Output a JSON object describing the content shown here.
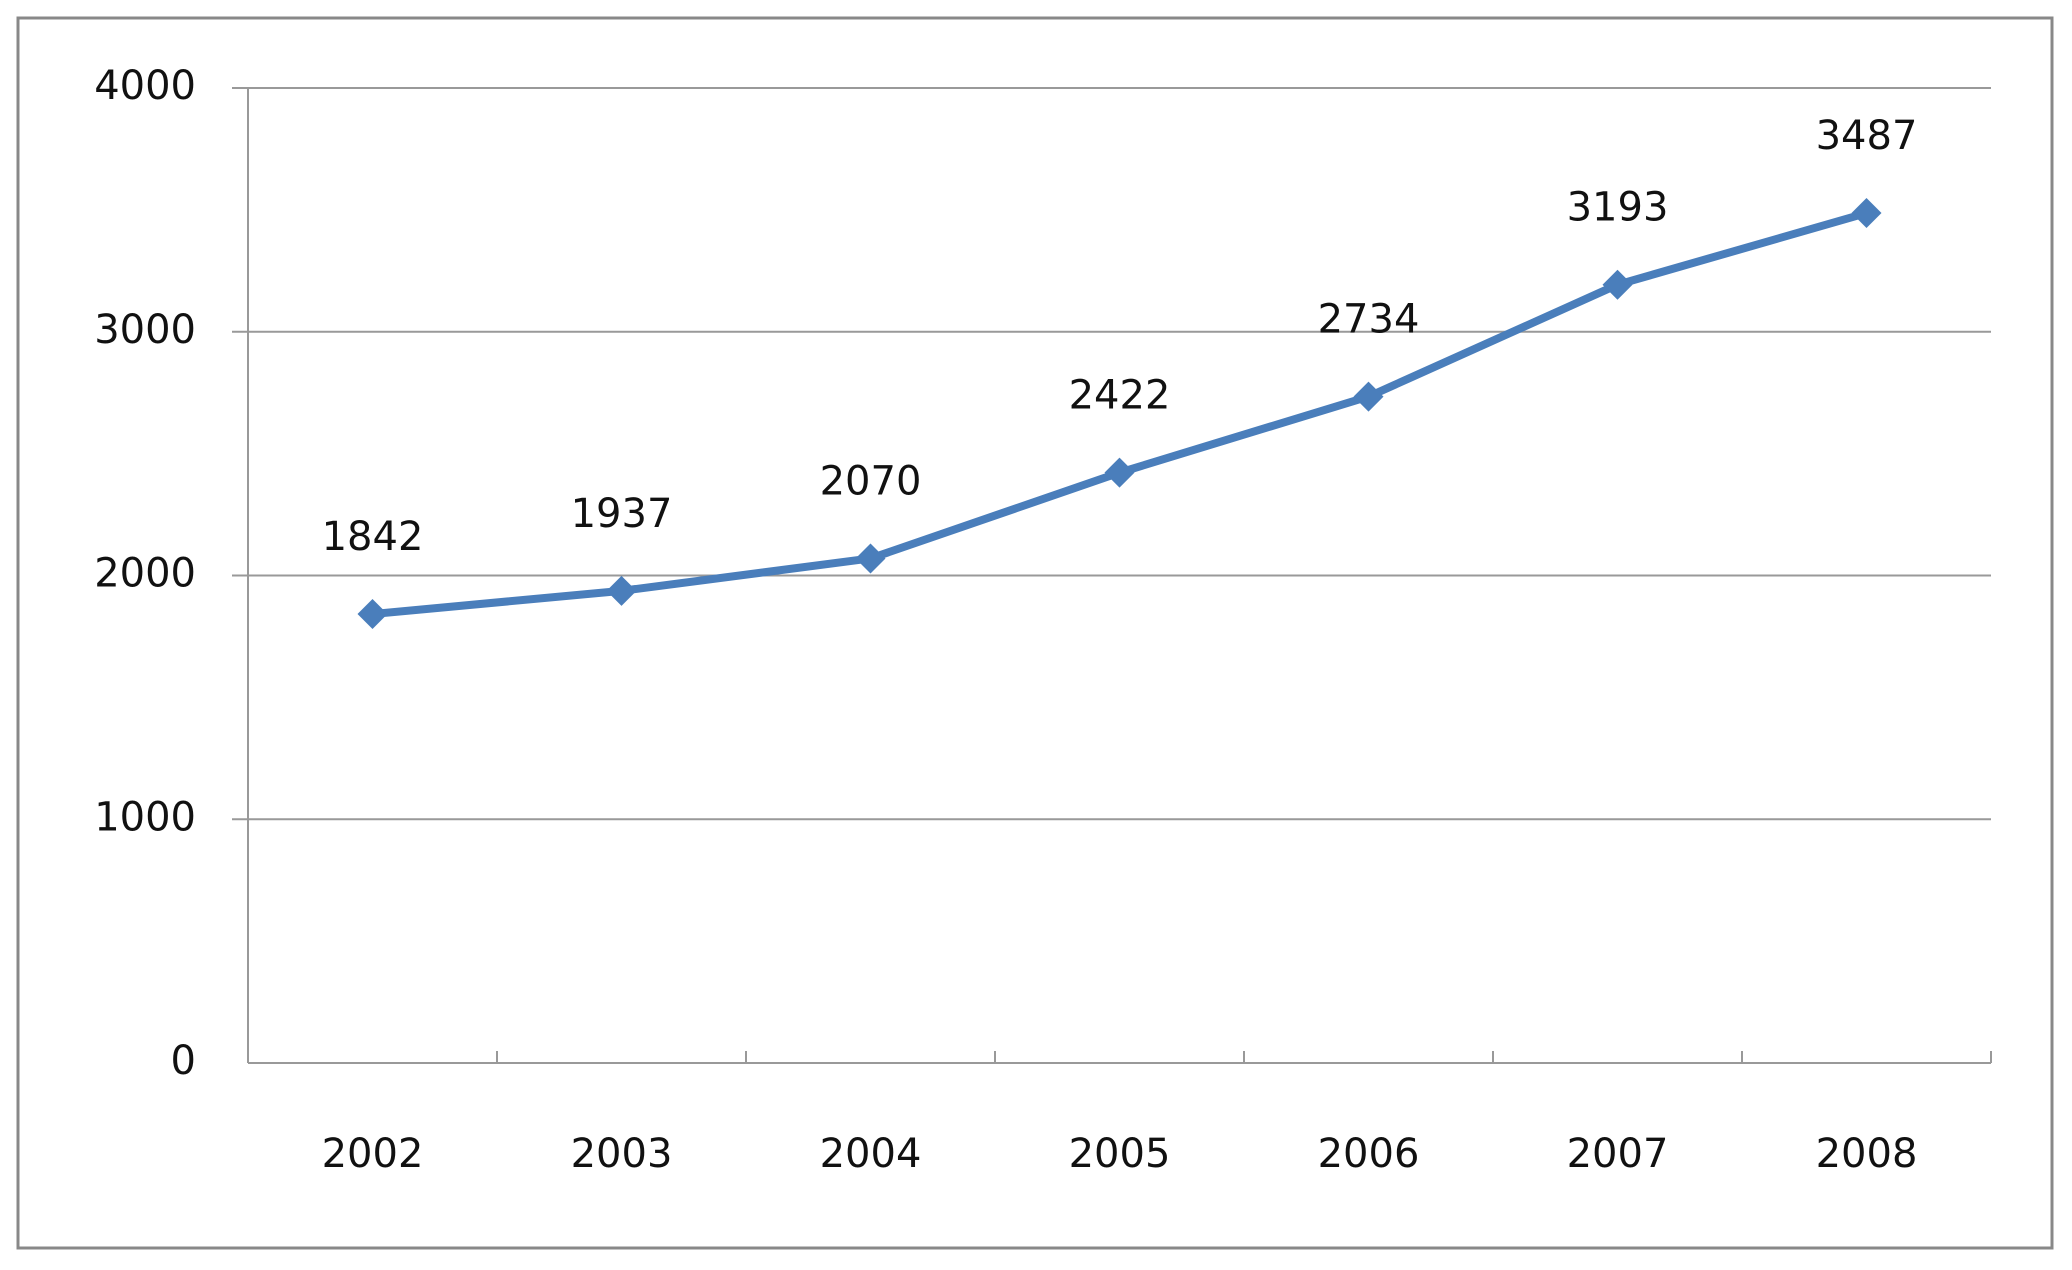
{
  "chart_data": {
    "type": "line",
    "categories": [
      "2002",
      "2003",
      "2004",
      "2005",
      "2006",
      "2007",
      "2008"
    ],
    "values": [
      1842,
      1937,
      2070,
      2422,
      2734,
      3193,
      3487
    ],
    "color": "#4a7ebb",
    "ylim": [
      0,
      4000
    ],
    "yticks": [
      0,
      1000,
      2000,
      3000,
      4000
    ],
    "grid": true
  }
}
